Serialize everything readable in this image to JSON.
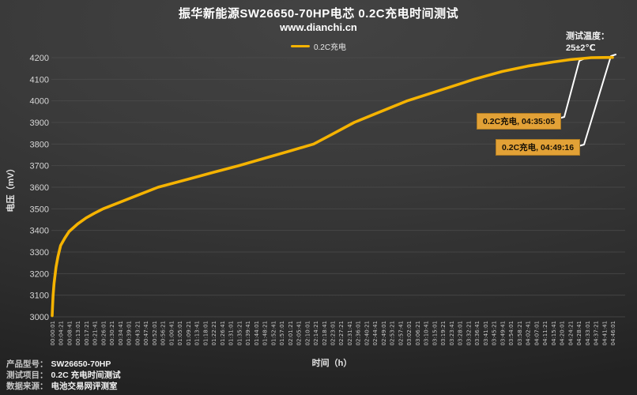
{
  "header": {
    "title": "振华新能源SW26650-70HP电芯 0.2C充电时间测试",
    "subtitle": "www.dianchi.cn",
    "temperature_label": "测试温度：",
    "temperature_value": "25±2℃"
  },
  "legend": {
    "label": "0.2C充电",
    "color": "#f5b301"
  },
  "chart_data": {
    "type": "line",
    "title": "振华新能源SW26650-70HP电芯 0.2C充电时间测试",
    "xlabel": "时间（h）",
    "ylabel": "电压（mV）",
    "ylim": [
      3000,
      4200
    ],
    "grid": true,
    "legend_position": "top-center",
    "y_ticks": [
      3000,
      3100,
      3200,
      3300,
      3400,
      3500,
      3600,
      3700,
      3800,
      3900,
      4000,
      4100,
      4200
    ],
    "x_ticks": [
      "00:00:01",
      "00:04:21",
      "00:08:41",
      "00:13:01",
      "00:17:21",
      "00:21:41",
      "00:26:01",
      "00:30:21",
      "00:34:41",
      "00:39:01",
      "00:43:21",
      "00:47:41",
      "00:52:01",
      "00:56:21",
      "01:00:41",
      "01:05:01",
      "01:09:21",
      "01:13:41",
      "01:18:01",
      "01:22:21",
      "01:26:41",
      "01:31:01",
      "01:35:21",
      "01:39:41",
      "01:44:01",
      "01:48:21",
      "01:52:41",
      "01:57:01",
      "02:01:21",
      "02:05:41",
      "02:10:01",
      "02:14:21",
      "02:18:41",
      "02:23:01",
      "02:27:21",
      "02:31:41",
      "02:36:01",
      "02:40:21",
      "02:44:41",
      "02:49:01",
      "02:53:21",
      "02:57:41",
      "03:02:01",
      "03:06:21",
      "03:10:41",
      "03:15:01",
      "03:19:21",
      "03:23:41",
      "03:28:01",
      "03:32:21",
      "03:36:41",
      "03:41:01",
      "03:45:21",
      "03:49:41",
      "03:54:01",
      "03:58:21",
      "04:02:41",
      "04:07:01",
      "04:11:21",
      "04:15:41",
      "04:20:01",
      "04:24:21",
      "04:28:41",
      "04:33:01",
      "04:37:21",
      "04:41:41",
      "04:46:01"
    ],
    "series": [
      {
        "name": "0.2C充电",
        "color": "#f5b301",
        "points_t_seconds_mV": [
          [
            1,
            3005
          ],
          [
            10,
            3040
          ],
          [
            30,
            3100
          ],
          [
            60,
            3155
          ],
          [
            120,
            3230
          ],
          [
            180,
            3280
          ],
          [
            261,
            3330
          ],
          [
            390,
            3365
          ],
          [
            521,
            3395
          ],
          [
            781,
            3430
          ],
          [
            1041,
            3458
          ],
          [
            1301,
            3480
          ],
          [
            1561,
            3500
          ],
          [
            2081,
            3531
          ],
          [
            2601,
            3562
          ],
          [
            3245,
            3600
          ],
          [
            4161,
            3637
          ],
          [
            4941,
            3669
          ],
          [
            5713,
            3700
          ],
          [
            6501,
            3734
          ],
          [
            7281,
            3768
          ],
          [
            8010,
            3800
          ],
          [
            8581,
            3846
          ],
          [
            9248,
            3900
          ],
          [
            9881,
            3939
          ],
          [
            10401,
            3971
          ],
          [
            10871,
            4000
          ],
          [
            11701,
            4040
          ],
          [
            12481,
            4078
          ],
          [
            12926,
            4100
          ],
          [
            13781,
            4136
          ],
          [
            14561,
            4161
          ],
          [
            15341,
            4180
          ],
          [
            15861,
            4191
          ],
          [
            16381,
            4198
          ],
          [
            16505,
            4200
          ],
          [
            17161,
            4201
          ]
        ]
      }
    ],
    "annotations": [
      {
        "label": "0.2C充电, 04:35:05"
      },
      {
        "label": "0.2C充电, 04:49:16"
      }
    ]
  },
  "footer": {
    "rows": [
      {
        "label": "产品型号：",
        "value": "SW26650-70HP"
      },
      {
        "label": "测试项目：",
        "value": "0.2C 充电时间测试"
      },
      {
        "label": "数据来源：",
        "value": "电池交易网评测室"
      }
    ]
  }
}
